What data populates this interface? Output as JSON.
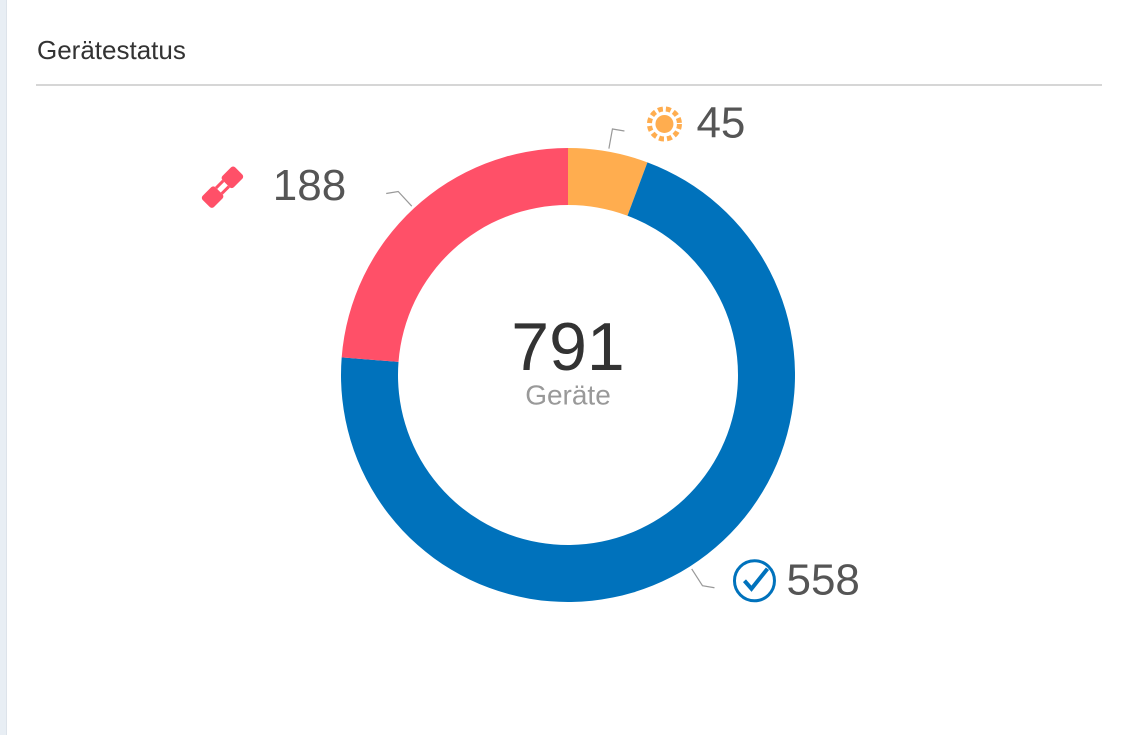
{
  "title": "Gerätestatus",
  "chart_data": {
    "type": "donut",
    "values": [
      45,
      558,
      188
    ],
    "colors": [
      "#ffad4f",
      "#0072bc",
      "#ff5068"
    ],
    "center_value": 791,
    "center_label": "Geräte"
  }
}
